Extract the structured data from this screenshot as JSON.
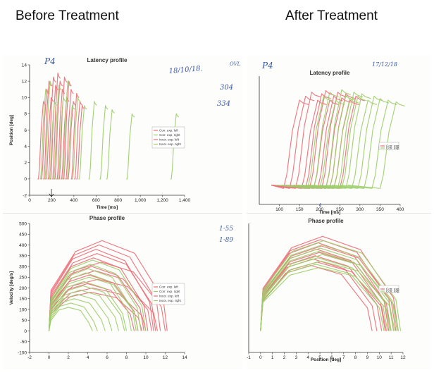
{
  "headings": {
    "before": "Before Treatment",
    "after": "After Treatment"
  },
  "colors": {
    "correct_left": "#ec6a74",
    "correct_right": "#9ccd6a",
    "hand_ink": "#3a5aa0"
  },
  "annotations": {
    "before_patient": "P4",
    "before_date": "18/10/18.",
    "before_note_ovl": "OVL",
    "before_note_304": "304",
    "before_note_334": "334",
    "before_phase_note1": "1·55",
    "before_phase_note2": "1·89",
    "after_patient": "P4",
    "after_date": "17/12/18"
  },
  "chart_data": [
    {
      "id": "before-latency",
      "type": "line",
      "title": "Latency profile",
      "xlabel": "Time [ms]",
      "ylabel": "Position [deg]",
      "xlim": [
        0,
        1400
      ],
      "ylim": [
        -2,
        14
      ],
      "xticks": [
        0,
        200,
        400,
        600,
        800,
        1000,
        1200,
        1400
      ],
      "xtick_labels": [
        "0",
        "200",
        "400",
        "600",
        "800",
        "1,000",
        "1,200",
        "1,400"
      ],
      "yticks": [
        -2,
        0,
        2,
        4,
        6,
        8,
        10,
        12,
        14
      ],
      "legend": [
        "Corr. exp. left",
        "Corr. exp. right",
        "Incor. exp. left",
        "Incor. exp. right"
      ],
      "series": [
        {
          "name": "Corr. exp. left",
          "color": "red",
          "onsets": [
            80,
            110,
            130,
            150,
            170,
            190,
            210,
            230,
            250,
            270,
            290,
            310,
            330,
            350,
            380,
            410,
            430
          ],
          "peaks": [
            9.5,
            11,
            12,
            10,
            12.5,
            11.5,
            13,
            12,
            11,
            12.5,
            10,
            12,
            11,
            9.5,
            10.5,
            9.5,
            9
          ]
        },
        {
          "name": "Corr. exp. right",
          "color": "green",
          "onsets": [
            100,
            140,
            180,
            220,
            260,
            300,
            340,
            390,
            450,
            540,
            640,
            700,
            880,
            1280
          ],
          "peaks": [
            11,
            12,
            9.5,
            11.5,
            10,
            12,
            9,
            10,
            9,
            9.5,
            9,
            8.5,
            8,
            8
          ]
        }
      ]
    },
    {
      "id": "before-phase",
      "type": "line",
      "title": "Phase profile",
      "xlabel": "",
      "ylabel": "Velocity [deg/s]",
      "xlim": [
        -2,
        14
      ],
      "ylim": [
        -100,
        500
      ],
      "xticks": [
        -2,
        0,
        2,
        4,
        6,
        8,
        10,
        12,
        14
      ],
      "yticks": [
        -100,
        -50,
        0,
        50,
        100,
        150,
        200,
        250,
        300,
        350,
        400,
        450,
        500
      ],
      "legend": [
        "Corr. exp. left",
        "Corr. exp. right",
        "Incor. exp. left",
        "Incor. exp. right"
      ],
      "series": [
        {
          "name": "Corr. exp. left",
          "color": "red",
          "peaks": [
            420,
            400,
            380,
            360,
            340,
            320,
            300,
            280,
            260,
            240,
            220,
            200,
            180
          ],
          "ends": [
            12.2,
            11.5,
            10.8,
            11,
            10.2,
            12,
            9.8,
            10.6,
            9.2,
            11.2,
            8.8,
            10,
            9.6
          ]
        },
        {
          "name": "Corr. exp. right",
          "color": "green",
          "peaks": [
            330,
            310,
            290,
            270,
            250,
            230,
            210,
            190,
            170,
            150,
            130,
            110
          ],
          "ends": [
            10,
            9.5,
            9,
            8.5,
            9.2,
            8,
            7.8,
            7.2,
            6.5,
            5.8,
            5,
            4.5
          ]
        }
      ]
    },
    {
      "id": "after-latency",
      "type": "line",
      "title": "Latency profile",
      "xlabel": "Time [ms]",
      "ylabel": "",
      "xlim": [
        50,
        400
      ],
      "ylim": [
        -2,
        14
      ],
      "xticks": [
        100,
        150,
        200,
        250,
        300,
        350,
        400
      ],
      "legend": [
        "Corr. exp.",
        "Corr. exp."
      ],
      "series": [
        {
          "name": "Corr. exp. left",
          "color": "red",
          "onsets": [
            110,
            125,
            140,
            155,
            165,
            175,
            185,
            195,
            205,
            215,
            225,
            235,
            250
          ],
          "peaks": [
            11,
            11.5,
            12,
            11,
            11.8,
            12.2,
            11,
            11.5,
            12,
            11.3,
            11.8,
            11,
            11.5
          ]
        },
        {
          "name": "Corr. exp. right",
          "color": "green",
          "onsets": [
            170,
            185,
            200,
            215,
            225,
            235,
            245,
            255,
            265,
            280,
            295,
            310,
            330,
            350
          ],
          "peaks": [
            11.5,
            12,
            11,
            12.3,
            11.6,
            11.2,
            12,
            11.5,
            11.8,
            11,
            11.5,
            11.2,
            11,
            10.8
          ]
        }
      ]
    },
    {
      "id": "after-phase",
      "type": "line",
      "title": "Phase profile",
      "xlabel": "Position [deg]",
      "ylabel": "",
      "xlim": [
        -1,
        12
      ],
      "ylim": [
        -100,
        500
      ],
      "xticks": [
        -1,
        0,
        1,
        2,
        3,
        4,
        5,
        6,
        7,
        8,
        9,
        10,
        11,
        12
      ],
      "legend": [
        "Corr. exp.",
        "Corr. exp."
      ],
      "series": [
        {
          "name": "Corr. exp. left",
          "color": "red",
          "peaks": [
            440,
            425,
            410,
            395,
            380,
            365,
            350,
            335,
            320,
            305
          ],
          "ends": [
            11.6,
            11.2,
            10.8,
            11.4,
            10.5,
            11,
            10.2,
            9.8,
            10.6,
            9.4
          ]
        },
        {
          "name": "Corr. exp. right",
          "color": "green",
          "peaks": [
            420,
            400,
            385,
            370,
            355,
            340,
            325,
            310,
            295
          ],
          "ends": [
            11.8,
            11.5,
            11.2,
            10.9,
            11.6,
            10.7,
            11.3,
            10.4,
            11
          ]
        }
      ]
    }
  ]
}
